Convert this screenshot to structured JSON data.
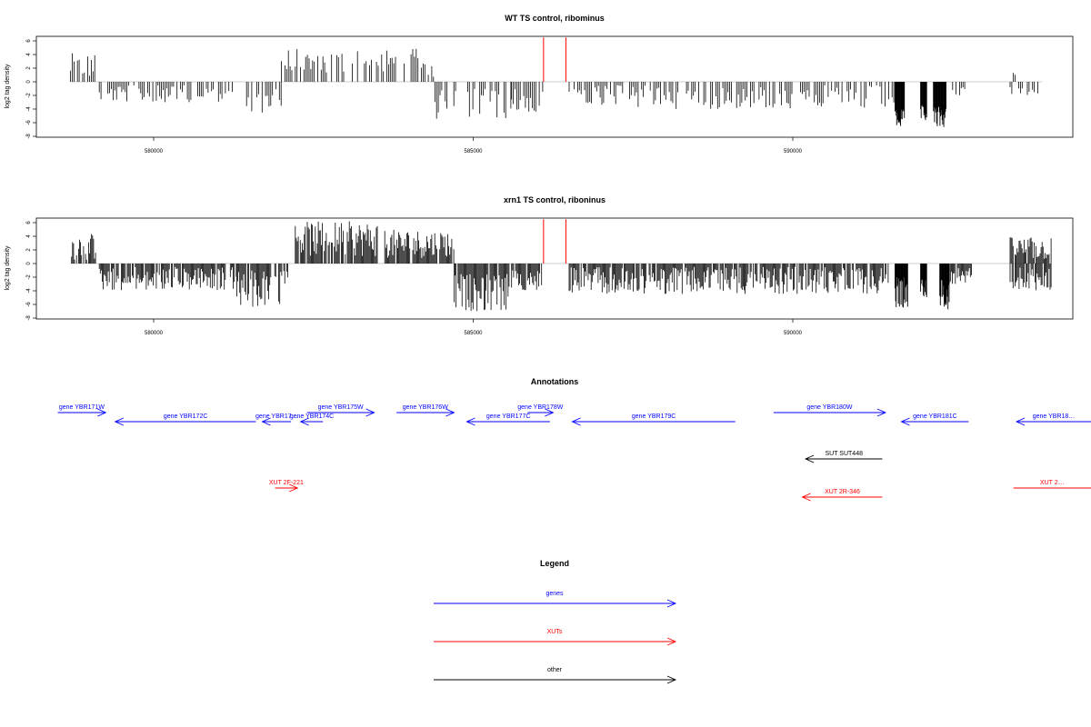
{
  "panels": [
    {
      "title": "WT TS control, ribominus",
      "ylabel": "log2 tag density",
      "yticks": [
        -8,
        -6,
        -4,
        -2,
        0,
        2,
        4,
        6
      ],
      "xticks": [
        580000,
        585000,
        590000
      ],
      "xlim": [
        578000,
        594400
      ],
      "ylim": [
        -8,
        7
      ],
      "data_segments": [
        {
          "start": 578700,
          "end": 579100,
          "sign": 1,
          "min": 0.5,
          "max": 4.2
        },
        {
          "start": 579150,
          "end": 581300,
          "sign": -1,
          "min": 0.5,
          "max": 3.0
        },
        {
          "start": 581400,
          "end": 582000,
          "sign": -1,
          "min": 1.0,
          "max": 4.6
        },
        {
          "start": 582000,
          "end": 584400,
          "sign": 1,
          "min": 0.5,
          "max": 4.9
        },
        {
          "start": 584400,
          "end": 585600,
          "sign": -1,
          "min": 1.0,
          "max": 5.5
        },
        {
          "start": 585600,
          "end": 586100,
          "sign": -1,
          "min": 1.0,
          "max": 4.5
        },
        {
          "start": 586500,
          "end": 591600,
          "sign": -1,
          "min": 0.5,
          "max": 4.0
        },
        {
          "start": 591600,
          "end": 591750,
          "sign": -1,
          "min": 4.0,
          "max": 6.8,
          "dense": true
        },
        {
          "start": 592000,
          "end": 592100,
          "sign": -1,
          "min": 3.5,
          "max": 6.0,
          "dense": true
        },
        {
          "start": 592200,
          "end": 592400,
          "sign": -1,
          "min": 3.5,
          "max": 6.8,
          "dense": true
        },
        {
          "start": 592500,
          "end": 592700,
          "sign": -1,
          "min": 0.5,
          "max": 2.0
        },
        {
          "start": 593400,
          "end": 593850,
          "sign": -1,
          "min": 0.5,
          "max": 2.0
        },
        {
          "start": 593450,
          "end": 593550,
          "sign": 1,
          "min": 0.5,
          "max": 2.4
        }
      ],
      "red_markers": [
        586100,
        586450
      ],
      "red_marker_height": 6.5
    },
    {
      "title": "xrn1 TS control, riboninus",
      "ylabel": "log2 tag density",
      "yticks": [
        -8,
        -6,
        -4,
        -2,
        0,
        2,
        4,
        6
      ],
      "xticks": [
        580000,
        585000,
        590000
      ],
      "xlim": [
        578000,
        594400
      ],
      "ylim": [
        -8,
        7
      ],
      "data_segments": [
        {
          "start": 578700,
          "end": 579100,
          "sign": 1,
          "min": 0.5,
          "max": 4.5
        },
        {
          "start": 579150,
          "end": 581300,
          "sign": -1,
          "min": 0.5,
          "max": 4.0
        },
        {
          "start": 581300,
          "end": 582100,
          "sign": -1,
          "min": 1.0,
          "max": 6.5
        },
        {
          "start": 582200,
          "end": 583500,
          "sign": 1,
          "min": 1.0,
          "max": 6.2
        },
        {
          "start": 583600,
          "end": 584700,
          "sign": 1,
          "min": 0.8,
          "max": 5.0
        },
        {
          "start": 584700,
          "end": 585600,
          "sign": -1,
          "min": 1.5,
          "max": 7.0
        },
        {
          "start": 585600,
          "end": 586100,
          "sign": -1,
          "min": 1.0,
          "max": 4.0
        },
        {
          "start": 586500,
          "end": 591500,
          "sign": -1,
          "min": 0.5,
          "max": 4.5
        },
        {
          "start": 591600,
          "end": 591800,
          "sign": -1,
          "min": 2.0,
          "max": 6.5,
          "dense": true
        },
        {
          "start": 592000,
          "end": 592100,
          "sign": -1,
          "min": 2.0,
          "max": 5.0,
          "dense": true
        },
        {
          "start": 592300,
          "end": 592450,
          "sign": -1,
          "min": 2.0,
          "max": 7.2,
          "dense": true
        },
        {
          "start": 592450,
          "end": 592800,
          "sign": -1,
          "min": 0.5,
          "max": 3.0
        },
        {
          "start": 593400,
          "end": 594050,
          "sign": 1,
          "min": 0.5,
          "max": 3.9
        },
        {
          "start": 593400,
          "end": 594050,
          "sign": -1,
          "min": 0.5,
          "max": 4.0
        }
      ],
      "red_markers": [
        586100,
        586450
      ],
      "red_marker_height": 6.5
    }
  ],
  "annotations": {
    "title": "Annotations",
    "items": [
      {
        "label": "gene YBR171W",
        "start": 578500,
        "end": 579250,
        "dir": "right",
        "row": 0,
        "type": "gene"
      },
      {
        "label": "gene YBR172C",
        "start": 579400,
        "end": 581600,
        "dir": "left",
        "row": 1,
        "type": "gene"
      },
      {
        "label": "gene YBR17…",
        "start": 581700,
        "end": 582150,
        "dir": "left",
        "row": 1,
        "type": "gene"
      },
      {
        "label": "gene YBR174C",
        "start": 582300,
        "end": 582650,
        "dir": "left",
        "row": 1,
        "type": "gene"
      },
      {
        "label": "gene YBR175W",
        "start": 582400,
        "end": 583450,
        "dir": "right",
        "row": 0,
        "type": "gene"
      },
      {
        "label": "gene YBR176W",
        "start": 583800,
        "end": 584700,
        "dir": "right",
        "row": 0,
        "type": "gene"
      },
      {
        "label": "gene YBR177C",
        "start": 584900,
        "end": 586200,
        "dir": "left",
        "row": 1,
        "type": "gene"
      },
      {
        "label": "gene YBR178W",
        "start": 585850,
        "end": 586250,
        "dir": "right",
        "row": 0,
        "type": "gene"
      },
      {
        "label": "gene YBR179C",
        "start": 586550,
        "end": 589100,
        "dir": "left",
        "row": 1,
        "type": "gene"
      },
      {
        "label": "gene YBR180W",
        "start": 589700,
        "end": 591450,
        "dir": "right",
        "row": 0,
        "type": "gene"
      },
      {
        "label": "gene YBR181C",
        "start": 591700,
        "end": 592750,
        "dir": "left",
        "row": 1,
        "type": "gene"
      },
      {
        "label": "gene YBR18…",
        "start": 593500,
        "end": 595500,
        "dir": "left",
        "row": 1,
        "type": "gene"
      },
      {
        "label": "SUT SUT448",
        "start": 590200,
        "end": 591400,
        "dir": "left",
        "row": 3,
        "type": "other"
      },
      {
        "label": "XUT 2F-221",
        "start": 581900,
        "end": 582250,
        "dir": "right",
        "row": 4,
        "type": "xut"
      },
      {
        "label": "XUT 2R-346",
        "start": 590150,
        "end": 591400,
        "dir": "left",
        "row": 5,
        "type": "xut"
      },
      {
        "label": "XUT 2…",
        "start": 593450,
        "end": 595500,
        "dir": "right",
        "row": 4,
        "type": "xut"
      }
    ]
  },
  "legend": {
    "title": "Legend",
    "items": [
      {
        "label": "genes",
        "color": "#0000ff"
      },
      {
        "label": "XUTs",
        "color": "#ff0000"
      },
      {
        "label": "other",
        "color": "#000000"
      }
    ]
  },
  "colors": {
    "gene": "#0000ff",
    "xut": "#ff0000",
    "other": "#000000",
    "data": "#000000",
    "baseline": "#bbbbbb",
    "marker": "#ff0000"
  }
}
